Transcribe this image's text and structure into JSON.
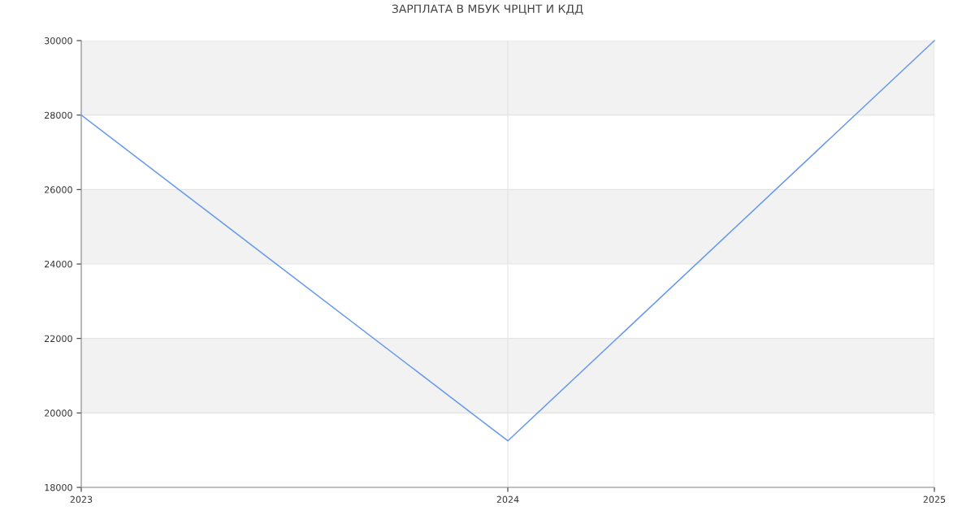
{
  "chart_data": {
    "type": "line",
    "title": "ЗАРПЛАТА В МБУК ЧРЦНТ И КДД",
    "x": [
      2023,
      2024,
      2025
    ],
    "series": [
      {
        "color": "#6699ee",
        "values": [
          28000,
          19250,
          30000
        ]
      }
    ],
    "xlim": [
      2023,
      2025
    ],
    "xticks": [
      2023,
      2024,
      2025
    ],
    "ylim": [
      18000,
      30000
    ],
    "yticks": [
      18000,
      20000,
      22000,
      24000,
      26000,
      28000,
      30000
    ],
    "bands": [
      {
        "axis": "y",
        "from": 20000,
        "to": 22000,
        "color": "#f2f2f2"
      },
      {
        "axis": "y",
        "from": 24000,
        "to": 26000,
        "color": "#f2f2f2"
      },
      {
        "axis": "y",
        "from": 28000,
        "to": 30000,
        "color": "#f2f2f2"
      }
    ],
    "grid": true,
    "marker": "none",
    "line_style": "solid"
  }
}
